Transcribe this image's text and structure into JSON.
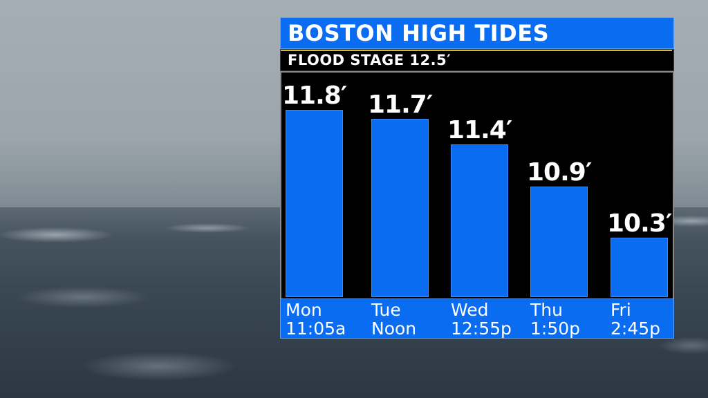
{
  "background": {
    "description_colors": {
      "sky": "#9ba5ab",
      "sea": "#34424e"
    }
  },
  "colors": {
    "accent_blue": "#0a6cf0",
    "panel_black": "#000000",
    "flood_line": "#d8b43a",
    "text": "#ffffff"
  },
  "header": {
    "title": "BOSTON HIGH TIDES",
    "subtitle": "FLOOD STAGE 12.5′"
  },
  "chart_data": {
    "type": "bar",
    "title": "BOSTON HIGH TIDES",
    "subtitle": "FLOOD STAGE 12.5′",
    "categories": [
      "Mon",
      "Tue",
      "Wed",
      "Thu",
      "Fri"
    ],
    "times": [
      "11:05a",
      "Noon",
      "12:55p",
      "1:50p",
      "2:45p"
    ],
    "values": [
      11.8,
      11.7,
      11.4,
      10.9,
      10.3
    ],
    "value_labels": [
      "11.8′",
      "11.7′",
      "11.4′",
      "10.9′",
      "10.3′"
    ],
    "units": "ft",
    "reference_line": {
      "value": 12.5
    },
    "grid": false,
    "legend": "none"
  }
}
